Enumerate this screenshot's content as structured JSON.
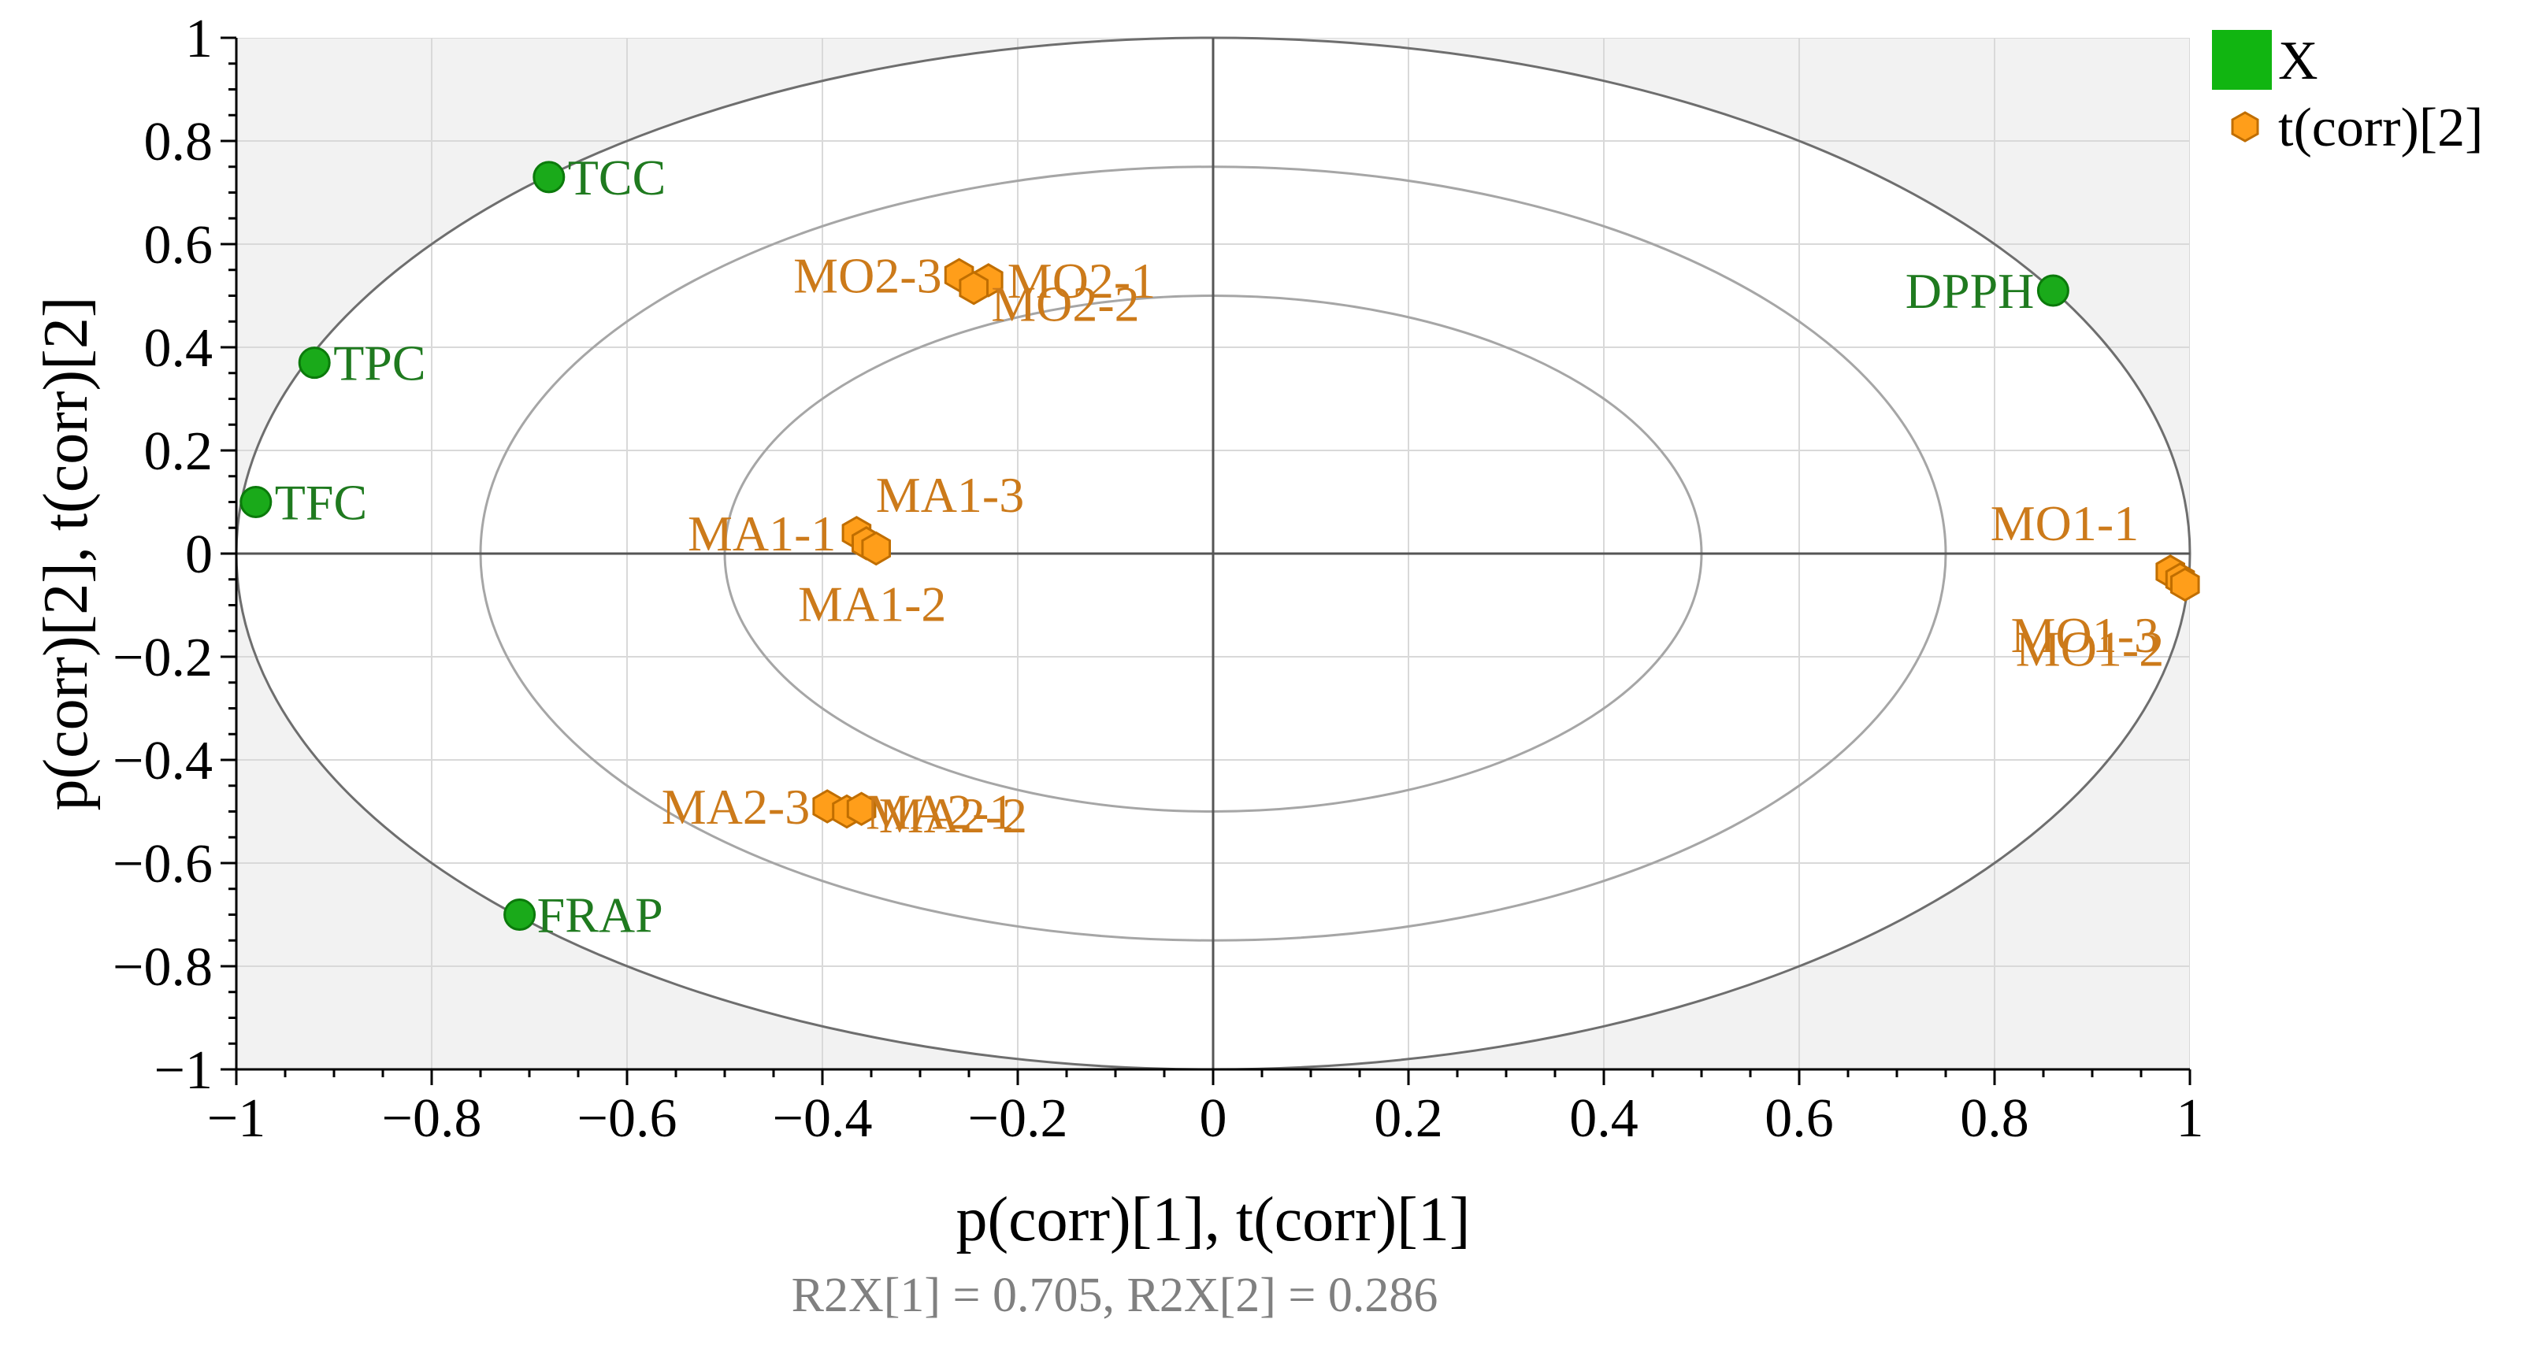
{
  "chart_data": {
    "type": "scatter",
    "xlabel": "p(corr)[1], t(corr)[1]",
    "ylabel": "p(corr)[2], t(corr)[2]",
    "subtitle": "R2X[1] = 0.705, R2X[2] = 0.286",
    "xlim": [
      -1,
      1
    ],
    "ylim": [
      -1,
      1
    ],
    "x_ticks": [
      -1,
      -0.8,
      -0.6,
      -0.4,
      -0.2,
      0,
      0.2,
      0.4,
      0.6,
      0.8,
      1
    ],
    "y_ticks": [
      -1,
      -0.8,
      -0.6,
      -0.4,
      -0.2,
      0,
      0.2,
      0.4,
      0.6,
      0.8,
      1
    ],
    "x_tick_labels": [
      "−1",
      "−0.8",
      "−0.6",
      "−0.4",
      "−0.2",
      "0",
      "0.2",
      "0.4",
      "0.6",
      "0.8",
      "1"
    ],
    "y_tick_labels": [
      "−1",
      "−0.8",
      "−0.6",
      "−0.4",
      "−0.2",
      "0",
      "0.2",
      "0.4",
      "0.6",
      "0.8",
      "1"
    ],
    "grid": true,
    "ellipses": [
      0.5,
      0.75,
      1.0
    ],
    "legend_position": "top-right",
    "series": [
      {
        "name": "X",
        "marker": "circle",
        "color": "#1aaa1a",
        "label_color": "#1f7a1f",
        "points": [
          {
            "label": "TCC",
            "x": -0.68,
            "y": 0.73
          },
          {
            "label": "TPC",
            "x": -0.92,
            "y": 0.37
          },
          {
            "label": "TFC",
            "x": -0.98,
            "y": 0.1
          },
          {
            "label": "FRAP",
            "x": -0.71,
            "y": -0.7
          },
          {
            "label": "DPPH",
            "x": 0.86,
            "y": 0.51
          }
        ]
      },
      {
        "name": "t(corr)[2]",
        "marker": "hexagon",
        "color": "#ff9e1a",
        "label_color": "#cc7a1a",
        "points": [
          {
            "label": "MO2-3",
            "x": -0.26,
            "y": 0.54
          },
          {
            "label": "MO2-1",
            "x": -0.23,
            "y": 0.53
          },
          {
            "label": "MO2-2",
            "x": -0.245,
            "y": 0.515
          },
          {
            "label": "MA1-1",
            "x": -0.365,
            "y": 0.04
          },
          {
            "label": "MA1-3",
            "x": -0.355,
            "y": 0.02
          },
          {
            "label": "MA1-2",
            "x": -0.345,
            "y": 0.01
          },
          {
            "label": "MA2-3",
            "x": -0.395,
            "y": -0.49
          },
          {
            "label": "MA2-1",
            "x": -0.375,
            "y": -0.5
          },
          {
            "label": "MA2-2",
            "x": -0.36,
            "y": -0.495
          },
          {
            "label": "MO1-1",
            "x": 0.98,
            "y": -0.035
          },
          {
            "label": "MO1-3",
            "x": 0.99,
            "y": -0.05
          },
          {
            "label": "MO1-2",
            "x": 0.995,
            "y": -0.06
          }
        ]
      }
    ]
  },
  "legend": {
    "items": [
      {
        "label": "X",
        "color": "#11b511"
      },
      {
        "label": "t(corr)[2]",
        "color": "#ff9e1a"
      }
    ]
  }
}
